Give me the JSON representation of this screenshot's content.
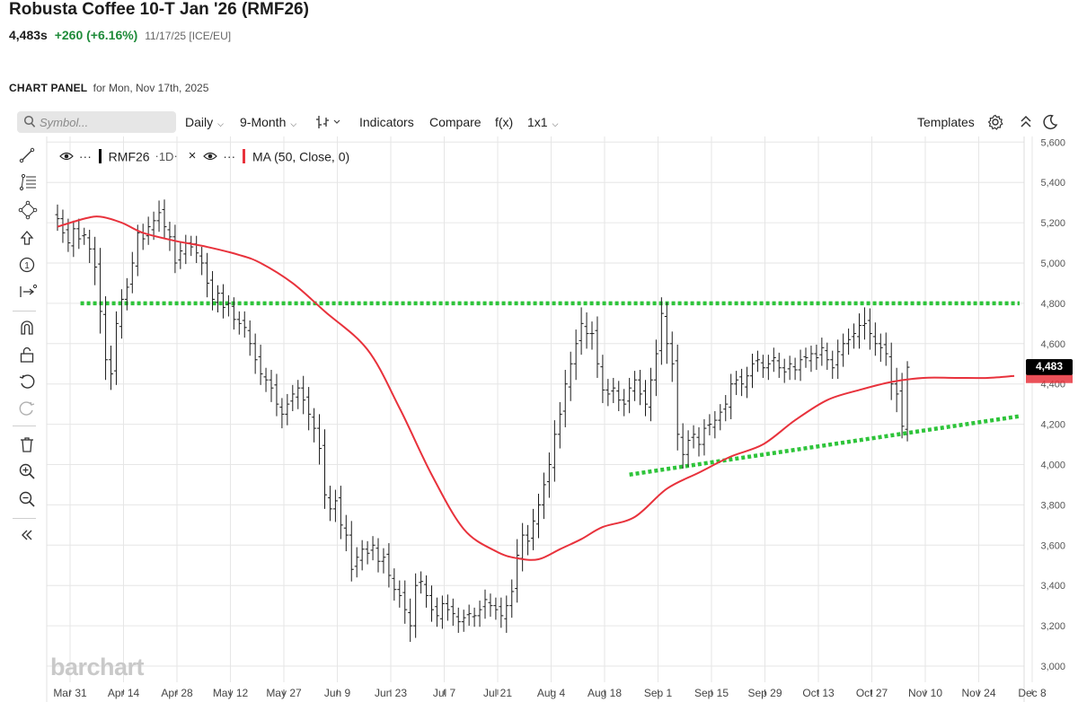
{
  "header": {
    "title": "Robusta Coffee 10-T Jan '26 (RMF26)",
    "last_price": "4,483s",
    "change": "+260 (+6.16%)",
    "meta": "11/17/25 [ICE/EU]"
  },
  "panel": {
    "title": "CHART PANEL",
    "date": "for Mon, Nov 17th, 2025"
  },
  "toolbar": {
    "symbol_placeholder": "Symbol...",
    "interval": "Daily",
    "period": "9-Month",
    "indicators": "Indicators",
    "compare": "Compare",
    "fx": "f(x)",
    "layout": "1x1",
    "templates": "Templates"
  },
  "legend": {
    "symbol": "RMF26",
    "interval": "1D",
    "ma_label": "MA (50, Close, 0)",
    "dots": "···"
  },
  "watermark": "barchart",
  "icons": {
    "search": "search-icon",
    "bar-type": "bar-type-icon",
    "settings": "gear-icon",
    "collapse": "chevrons-up-icon",
    "theme": "moon-icon",
    "eye": "eye-icon",
    "close": "close-icon",
    "tools": [
      "line-tool-icon",
      "fib-tool-icon",
      "shape-tool-icon",
      "arrow-tool-icon",
      "numbered-marker-icon",
      "measure-tool-icon",
      "magnet-icon",
      "lock-icon",
      "undo-icon",
      "redo-icon",
      "trash-icon",
      "zoom-in-icon",
      "zoom-out-icon",
      "collapse-left-icon"
    ]
  },
  "colors": {
    "up_change": "#1f8b3a",
    "ohlc_bars": "#1a1a1a",
    "ma_line": "#e8323c",
    "trendline": "#2ec43a",
    "price_tag_bg": "#000000",
    "legend_ohlc_marker": "#000000",
    "legend_ma_marker": "#e8323c",
    "grid": "#e6e6e6"
  },
  "chart_data": {
    "type": "ohlc",
    "y_axis": {
      "min": 3000,
      "max": 5600,
      "step": 200,
      "side": "right",
      "ticks": [
        "5,600",
        "5,400",
        "5,200",
        "5,000",
        "4,800",
        "4,600",
        "4,400",
        "4,200",
        "4,000",
        "3,800",
        "3,600",
        "3,400",
        "3,200",
        "3,000"
      ]
    },
    "x_axis": {
      "ticks": [
        "Mar 31",
        "Apr 14",
        "Apr 28",
        "May 12",
        "May 27",
        "Jun 9",
        "Jun 23",
        "Jul 7",
        "Jul 21",
        "Aug 4",
        "Aug 18",
        "Sep 1",
        "Sep 15",
        "Sep 29",
        "Oct 13",
        "Oct 27",
        "Nov 10",
        "Nov 24",
        "Dec 8"
      ],
      "tick_bar_index": [
        0,
        10,
        20,
        30,
        40,
        50,
        60,
        70,
        80,
        90,
        100,
        110,
        120,
        130,
        140,
        150,
        160,
        170,
        180
      ]
    },
    "last_price_label": "4,483",
    "last_price": 4483,
    "close": [
      5220,
      5150,
      5100,
      5170,
      5120,
      5140,
      5070,
      4980,
      4760,
      4520,
      4450,
      4700,
      4820,
      4880,
      5000,
      5150,
      5120,
      5180,
      5210,
      5250,
      5180,
      5130,
      5000,
      5060,
      5100,
      5080,
      5050,
      5000,
      4900,
      4820,
      4850,
      4780,
      4800,
      4720,
      4700,
      4680,
      4600,
      4520,
      4450,
      4420,
      4380,
      4300,
      4250,
      4300,
      4350,
      4380,
      4320,
      4250,
      4180,
      4080,
      3850,
      3780,
      3820,
      3700,
      3650,
      3480,
      3540,
      3580,
      3560,
      3600,
      3520,
      3540,
      3450,
      3380,
      3350,
      3280,
      3200,
      3400,
      3420,
      3350,
      3280,
      3250,
      3310,
      3280,
      3260,
      3220,
      3240,
      3260,
      3250,
      3280,
      3330,
      3300,
      3280,
      3250,
      3300,
      3370,
      3550,
      3650,
      3620,
      3720,
      3800,
      3900,
      4000,
      4150,
      4250,
      4400,
      4500,
      4600,
      4700,
      4650,
      4650,
      4500,
      4370,
      4350,
      4380,
      4320,
      4300,
      4380,
      4420,
      4350,
      4300,
      4420,
      4550,
      4750,
      4600,
      4500,
      4150,
      4050,
      4120,
      4150,
      4100,
      4180,
      4200,
      4220,
      4260,
      4300,
      4400,
      4420,
      4400,
      4440,
      4500,
      4520,
      4480,
      4500,
      4530,
      4480,
      4460,
      4500,
      4470,
      4520,
      4530,
      4550,
      4530,
      4580,
      4520,
      4480,
      4560,
      4600,
      4620,
      4650,
      4690,
      4700,
      4650,
      4600,
      4580,
      4550,
      4400,
      4350,
      4190,
      4483
    ],
    "high_offset": [
      50,
      45,
      55,
      40,
      50,
      35,
      40,
      60,
      80,
      90,
      70,
      60,
      50,
      45,
      55,
      40,
      45,
      50,
      45,
      60,
      50,
      40,
      60,
      45,
      40,
      35,
      40,
      45,
      50,
      45,
      40,
      45,
      40,
      45,
      40,
      45,
      50,
      50,
      60,
      45,
      50,
      55,
      45,
      50,
      45,
      40,
      60,
      50,
      45,
      70,
      80,
      60,
      55,
      60,
      65,
      70,
      50,
      45,
      40,
      45,
      50,
      45,
      55,
      50,
      45,
      60,
      70,
      60,
      50,
      45,
      50,
      45,
      40,
      45,
      40,
      45,
      40,
      45,
      40,
      45,
      50,
      45,
      40,
      45,
      50,
      60,
      80,
      60,
      50,
      60,
      55,
      60,
      60,
      70,
      60,
      70,
      60,
      70,
      80,
      70,
      60,
      70,
      60,
      55,
      50,
      50,
      55,
      50,
      45,
      50,
      55,
      60,
      70,
      80,
      70,
      60,
      80,
      70,
      50,
      45,
      50,
      45,
      50,
      45,
      40,
      45,
      50,
      45,
      40,
      45,
      50,
      45,
      40,
      45,
      50,
      40,
      45,
      40,
      45,
      50,
      45,
      40,
      45,
      50,
      40,
      45,
      60,
      50,
      55,
      50,
      60,
      80,
      60,
      70,
      50,
      60,
      70,
      80,
      90,
      30
    ],
    "low_offset": [
      60,
      50,
      45,
      55,
      50,
      45,
      70,
      90,
      110,
      100,
      80,
      70,
      60,
      55,
      45,
      50,
      55,
      45,
      50,
      55,
      60,
      70,
      50,
      45,
      50,
      45,
      50,
      60,
      70,
      55,
      50,
      55,
      60,
      50,
      55,
      50,
      60,
      70,
      55,
      60,
      70,
      60,
      70,
      55,
      50,
      60,
      70,
      80,
      70,
      80,
      70,
      60,
      65,
      70,
      80,
      60,
      55,
      50,
      55,
      50,
      55,
      60,
      60,
      55,
      60,
      70,
      80,
      60,
      55,
      60,
      60,
      55,
      50,
      55,
      60,
      55,
      50,
      55,
      50,
      55,
      60,
      55,
      50,
      60,
      70,
      60,
      70,
      65,
      70,
      60,
      70,
      70,
      80,
      70,
      70,
      80,
      70,
      80,
      70,
      75,
      80,
      70,
      65,
      60,
      60,
      55,
      60,
      60,
      50,
      55,
      60,
      70,
      80,
      70,
      100,
      90,
      80,
      70,
      60,
      55,
      60,
      55,
      50,
      55,
      50,
      60,
      60,
      55,
      60,
      55,
      60,
      55,
      50,
      60,
      55,
      50,
      55,
      55,
      50,
      55,
      50,
      55,
      60,
      55,
      50,
      55,
      70,
      60,
      55,
      60,
      60,
      70,
      80,
      60,
      70,
      60,
      80,
      90,
      60,
      60
    ],
    "ma_50": {
      "name": "MA (50, Close, 0)",
      "points": [
        [
          0,
          5180
        ],
        [
          5,
          5220
        ],
        [
          8,
          5230
        ],
        [
          12,
          5200
        ],
        [
          16,
          5150
        ],
        [
          22,
          5110
        ],
        [
          28,
          5080
        ],
        [
          34,
          5040
        ],
        [
          38,
          5000
        ],
        [
          44,
          4900
        ],
        [
          50,
          4760
        ],
        [
          58,
          4570
        ],
        [
          64,
          4280
        ],
        [
          70,
          3950
        ],
        [
          76,
          3680
        ],
        [
          82,
          3570
        ],
        [
          86,
          3535
        ],
        [
          90,
          3530
        ],
        [
          94,
          3580
        ],
        [
          98,
          3630
        ],
        [
          102,
          3690
        ],
        [
          108,
          3740
        ],
        [
          114,
          3880
        ],
        [
          120,
          3960
        ],
        [
          126,
          4040
        ],
        [
          132,
          4100
        ],
        [
          138,
          4220
        ],
        [
          144,
          4320
        ],
        [
          150,
          4370
        ],
        [
          156,
          4410
        ],
        [
          162,
          4430
        ],
        [
          168,
          4430
        ],
        [
          174,
          4430
        ],
        [
          179,
          4440
        ]
      ]
    },
    "trendlines": [
      {
        "style": "dotted",
        "points": [
          [
            4.3,
            4800
          ],
          [
            180,
            4800
          ]
        ]
      },
      {
        "style": "dotted",
        "points": [
          [
            107,
            3950
          ],
          [
            180,
            4240
          ]
        ]
      }
    ]
  }
}
